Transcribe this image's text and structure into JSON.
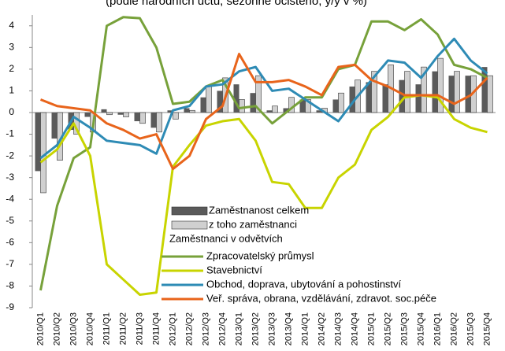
{
  "chart_data": {
    "type": "bar-line",
    "title": "(podle národních účtů, sezónně očištěno, y/y v %)",
    "categories": [
      "2010/Q1",
      "2010/Q2",
      "2010/Q3",
      "2010/Q4",
      "2011/Q1",
      "2011/Q2",
      "2011/Q3",
      "2011/Q4",
      "2012/Q1",
      "2012/Q2",
      "2012/Q3",
      "2012/Q4",
      "2013/Q1",
      "2013/Q2",
      "2013/Q3",
      "2013/Q4",
      "2014/Q1",
      "2014/Q2",
      "2014/Q3",
      "2014/Q4",
      "2015/Q1",
      "2015/Q2",
      "2015/Q3",
      "2015/Q4",
      "2016/Q1",
      "2016/Q2",
      "2015/Q3",
      "2015/Q4"
    ],
    "ylim": [
      -9,
      4.5
    ],
    "yticks": [
      -9,
      -8,
      -7,
      -6,
      -5,
      -4,
      -3,
      -2,
      -1,
      0,
      1,
      2,
      3,
      4
    ],
    "grid": false,
    "legend_title": "Zaměstnanci v odvětvích",
    "bar_series": [
      {
        "name": "Zaměstnanost celkem",
        "color": "#5a5a5a",
        "values": [
          -2.7,
          -1.2,
          -0.8,
          -0.2,
          0.15,
          -0.1,
          -0.4,
          -0.7,
          0.1,
          0.2,
          0.7,
          1.0,
          1.3,
          0.9,
          0.1,
          0.2,
          0.6,
          0.1,
          0.6,
          1.2,
          1.4,
          1.3,
          1.5,
          1.3,
          1.9,
          1.7,
          1.7,
          2.1
        ]
      },
      {
        "name": "z toho zaměstnanci",
        "color": "#d0d0d0",
        "values": [
          -3.7,
          -2.2,
          -1.0,
          -0.9,
          -0.1,
          -0.2,
          -0.5,
          -0.9,
          -0.3,
          0.1,
          1.2,
          1.6,
          0.6,
          1.7,
          0.3,
          0.7,
          0.6,
          0.2,
          0.9,
          1.5,
          1.9,
          2.2,
          1.9,
          2.1,
          2.5,
          1.9,
          1.7,
          1.7
        ]
      }
    ],
    "line_series": [
      {
        "name": "Zpracovatelský průmysl",
        "color": "#77a13a",
        "values": [
          -8.2,
          -4.3,
          -2.1,
          -1.6,
          4.0,
          4.4,
          4.35,
          3.0,
          0.4,
          0.5,
          1.2,
          1.5,
          0.2,
          0.3,
          -0.5,
          0.1,
          0.7,
          0.7,
          2.0,
          2.2,
          4.2,
          4.2,
          3.8,
          4.3,
          3.6,
          2.2,
          2.0,
          1.6
        ]
      },
      {
        "name": "Stavebnictví",
        "color": "#c8d400",
        "values": [
          -2.3,
          -1.7,
          -0.5,
          -2.0,
          -7.0,
          -7.7,
          -8.4,
          -8.3,
          -2.5,
          -1.5,
          -0.6,
          -0.4,
          -0.3,
          -1.3,
          -3.2,
          -3.3,
          -4.4,
          -4.4,
          -3.0,
          -2.4,
          -0.8,
          -0.2,
          0.7,
          0.8,
          0.7,
          -0.3,
          -0.7,
          -0.9
        ]
      },
      {
        "name": "Obchod, doprava, ubytování a pohostinství",
        "color": "#2e8bb5",
        "values": [
          -2.1,
          -1.5,
          -0.2,
          -0.7,
          -1.3,
          -1.4,
          -1.5,
          -1.9,
          0.1,
          0.3,
          1.2,
          1.3,
          1.9,
          2.1,
          1.0,
          1.1,
          0.6,
          0.1,
          -0.4,
          0.6,
          1.5,
          2.4,
          2.3,
          1.6,
          2.6,
          3.4,
          2.4,
          1.8
        ]
      },
      {
        "name": "Veř. správa, obrana, vzdělávání, zdravot. soc.péče",
        "color": "#e8641b",
        "values": [
          0.6,
          0.3,
          0.2,
          0.1,
          -0.5,
          -0.8,
          -1.2,
          -1.0,
          -2.6,
          -2.0,
          -0.3,
          0.3,
          2.7,
          1.4,
          1.4,
          1.5,
          1.2,
          0.8,
          2.1,
          2.2,
          1.5,
          1.2,
          0.8,
          0.8,
          0.8,
          0.4,
          0.8,
          1.6
        ]
      }
    ]
  }
}
